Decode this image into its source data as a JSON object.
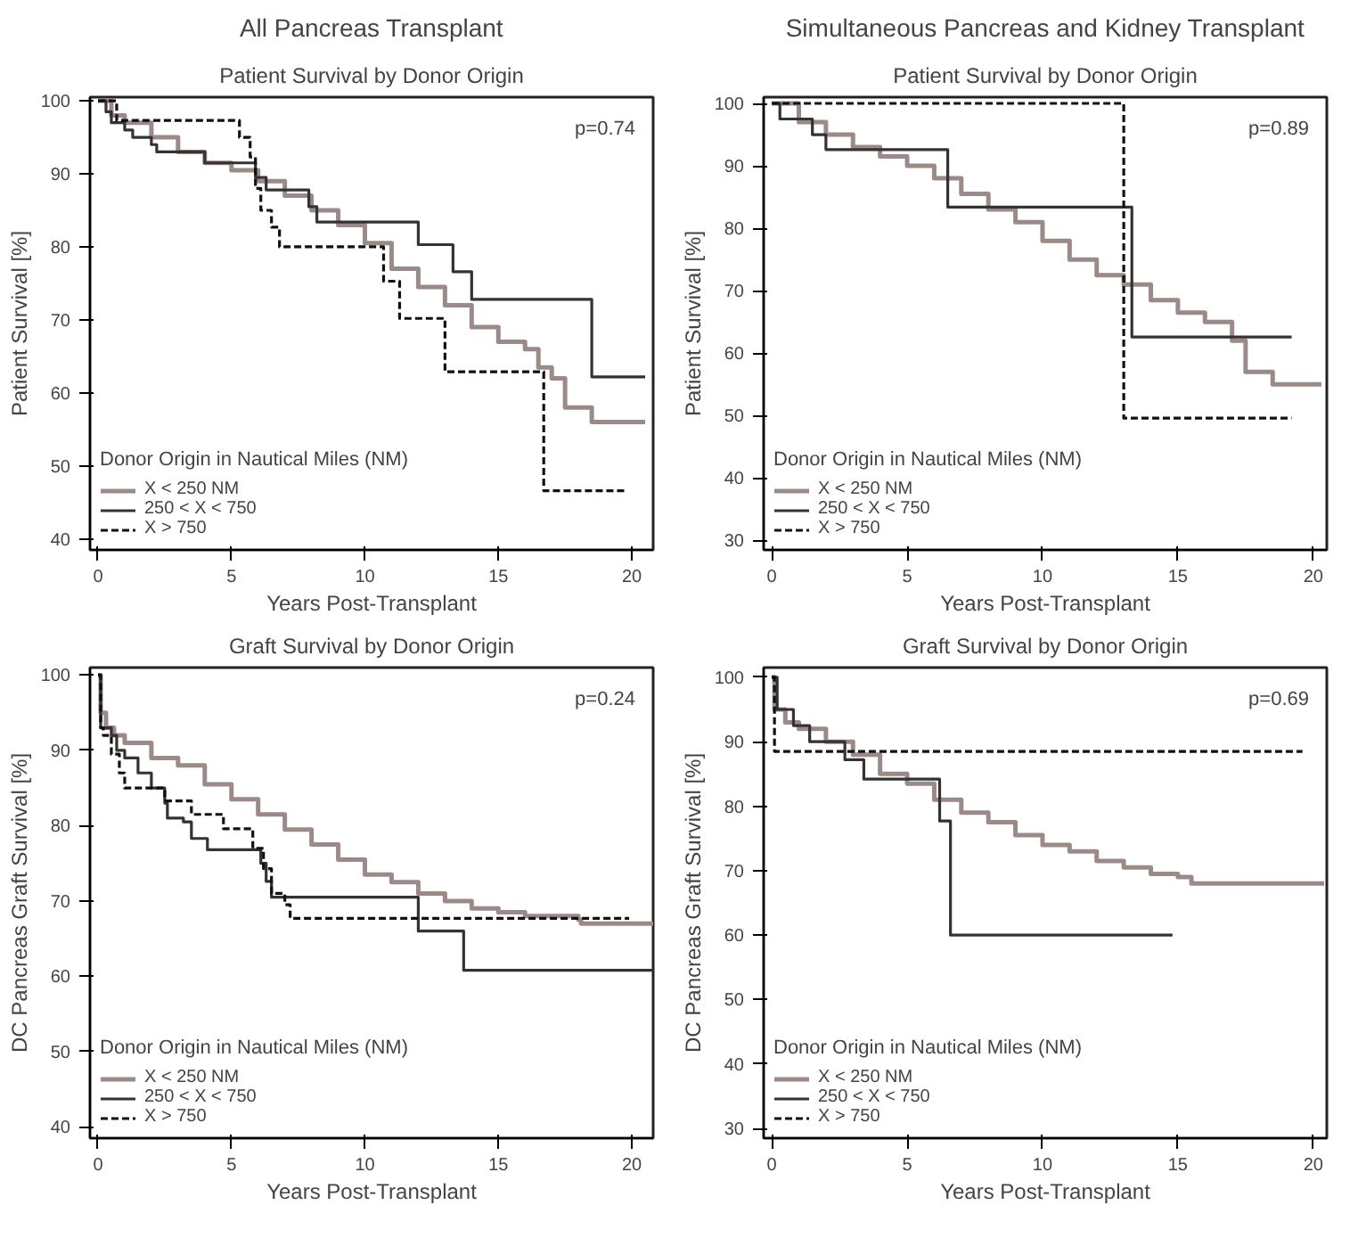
{
  "chart_data": [
    {
      "type": "step",
      "subtitle": "All Pancreas Transplant",
      "title": "Patient Survival by Donor Origin",
      "xlabel": "Years Post-Transplant",
      "ylabel": "Patient Survival [%]",
      "legend_title": "Donor Origin in Nautical Miles (NM)",
      "legend": "bottom left",
      "grid": false,
      "marker": "none",
      "annotations": [
        "p=0.74"
      ],
      "xlim": [
        -0.3,
        20.8
      ],
      "ylim": [
        38.5,
        100.5
      ],
      "xticks": [
        0,
        5,
        10,
        15,
        20
      ],
      "yticks": [
        40,
        50,
        60,
        70,
        80,
        90,
        100
      ],
      "series": [
        {
          "name": "X < 250 NM",
          "color": "#9b8a87",
          "line_style": "solid",
          "x": [
            0,
            0.5,
            1,
            2,
            3,
            4,
            5,
            6,
            7,
            8,
            9,
            10,
            11,
            12,
            13,
            14,
            15,
            16,
            16.5,
            17,
            17.5,
            18.5,
            20.5
          ],
          "values": [
            100,
            98,
            97,
            95,
            93,
            91.5,
            90.5,
            89,
            87,
            85,
            83,
            80.5,
            77,
            74.5,
            72,
            69,
            67,
            66,
            63.5,
            62,
            58,
            56,
            56
          ]
        },
        {
          "name": "250 < X < 750",
          "color": "#333333",
          "line_style": "solid",
          "x": [
            0,
            0.3,
            0.5,
            1,
            1.3,
            2,
            2.2,
            4,
            5.9,
            6.3,
            7.9,
            8.2,
            12,
            13.3,
            14,
            18.5,
            20.5
          ],
          "values": [
            100,
            98.5,
            97,
            96,
            95,
            94,
            93,
            91.5,
            89.5,
            87.8,
            85.5,
            83.4,
            80.3,
            76.6,
            72.8,
            62.2,
            62.2
          ]
        },
        {
          "name": "X > 750",
          "color": "#111111",
          "line_style": "dashed",
          "x": [
            0,
            0.7,
            5.3,
            5.7,
            5.9,
            6.1,
            6.5,
            6.8,
            10.7,
            11.3,
            13,
            16.7,
            19.8
          ],
          "values": [
            100,
            97.3,
            95,
            92.3,
            88,
            85,
            82.7,
            80,
            75.3,
            70.2,
            62.9,
            46.6,
            46.6
          ]
        }
      ]
    },
    {
      "type": "step",
      "subtitle": "Simultaneous Pancreas and Kidney Transplant",
      "title": "Patient Survival by Donor Origin",
      "xlabel": "Years Post-Transplant",
      "ylabel": "Patient Survival [%]",
      "legend_title": "Donor Origin in Nautical Miles (NM)",
      "legend": "bottom left",
      "grid": false,
      "marker": "none",
      "annotations": [
        "p=0.89"
      ],
      "xlim": [
        -0.3,
        20.5
      ],
      "ylim": [
        28.5,
        101
      ],
      "xticks": [
        0,
        5,
        10,
        15,
        20
      ],
      "yticks": [
        30,
        40,
        50,
        60,
        70,
        80,
        90,
        100
      ],
      "series": [
        {
          "name": "X < 250 NM",
          "color": "#9b8a87",
          "line_style": "solid",
          "x": [
            0,
            1,
            2,
            3,
            4,
            5,
            6,
            7,
            8,
            9,
            10,
            11,
            12,
            13,
            14,
            15,
            16,
            17,
            17.5,
            18.5,
            20.3
          ],
          "values": [
            100,
            97,
            95,
            93,
            91.5,
            90,
            88,
            85.5,
            83,
            81,
            78,
            75,
            72.5,
            71,
            68.5,
            66.5,
            65,
            62,
            57,
            55,
            55
          ]
        },
        {
          "name": "250 < X < 750",
          "color": "#333333",
          "line_style": "solid",
          "x": [
            0,
            0.3,
            1.5,
            2,
            6.5,
            13.3,
            19.2
          ],
          "values": [
            100,
            97.5,
            95,
            92.6,
            83.4,
            62.6,
            62.6
          ]
        },
        {
          "name": "X > 750",
          "color": "#111111",
          "line_style": "dashed",
          "x": [
            0,
            13,
            19.2
          ],
          "values": [
            100,
            49.6,
            49.6
          ]
        }
      ]
    },
    {
      "type": "step",
      "title": "Graft Survival by Donor Origin",
      "xlabel": "Years Post-Transplant",
      "ylabel": "DC Pancreas Graft Survival [%]",
      "legend_title": "Donor Origin in Nautical Miles (NM)",
      "legend": "bottom left",
      "grid": false,
      "marker": "none",
      "annotations": [
        "p=0.24"
      ],
      "xlim": [
        -0.3,
        20.8
      ],
      "ylim": [
        38.5,
        101
      ],
      "xticks": [
        0,
        5,
        10,
        15,
        20
      ],
      "yticks": [
        40,
        50,
        60,
        70,
        80,
        90,
        100
      ],
      "series": [
        {
          "name": "X < 250 NM",
          "color": "#9b8a87",
          "line_style": "solid",
          "x": [
            0,
            0.1,
            0.3,
            0.6,
            1,
            2,
            3,
            4,
            5,
            6,
            7,
            8,
            9,
            10,
            11,
            12,
            13,
            14,
            15,
            16,
            18,
            18.1,
            20.8
          ],
          "values": [
            100,
            95,
            93,
            92,
            91,
            89,
            88,
            85.5,
            83.5,
            81.5,
            79.5,
            77.5,
            75.5,
            73.5,
            72.5,
            71,
            70,
            69,
            68.5,
            68,
            67.5,
            67,
            67
          ]
        },
        {
          "name": "250 < X < 750",
          "color": "#333333",
          "line_style": "solid",
          "x": [
            0,
            0.1,
            0.5,
            0.7,
            1,
            1.5,
            2,
            2.5,
            2.6,
            3.2,
            3.5,
            4.1,
            6.1,
            6.3,
            6.5,
            12,
            13.7,
            20.8
          ],
          "values": [
            100,
            93,
            92,
            90,
            89,
            87,
            85,
            83,
            81,
            80.5,
            78.3,
            76.8,
            75,
            72.6,
            70.5,
            66,
            60.8,
            60.8
          ]
        },
        {
          "name": "X > 750",
          "color": "#111111",
          "line_style": "dashed",
          "x": [
            0,
            0.1,
            0.2,
            0.5,
            0.8,
            1,
            2.5,
            3.5,
            4.7,
            5.8,
            6.2,
            6.5,
            7,
            7.2,
            19.9
          ],
          "values": [
            100,
            93,
            92,
            89.5,
            87,
            85,
            83.3,
            81.5,
            79.6,
            77,
            74.3,
            71,
            69.5,
            67.7,
            67.7
          ]
        }
      ]
    },
    {
      "type": "step",
      "title": "Graft Survival by Donor Origin",
      "xlabel": "Years Post-Transplant",
      "ylabel": "DC Pancreas Graft Survival [%]",
      "legend_title": "Donor Origin in Nautical Miles (NM)",
      "legend": "bottom left",
      "grid": false,
      "marker": "none",
      "annotations": [
        "p=0.69"
      ],
      "xlim": [
        -0.3,
        20.5
      ],
      "ylim": [
        28.5,
        101.5
      ],
      "xticks": [
        0,
        5,
        10,
        15,
        20
      ],
      "yticks": [
        30,
        40,
        50,
        60,
        70,
        80,
        90,
        100
      ],
      "series": [
        {
          "name": "X < 250 NM",
          "color": "#9b8a87",
          "line_style": "solid",
          "x": [
            0,
            0.1,
            0.5,
            1,
            2,
            3,
            4,
            5,
            6,
            7,
            8,
            9,
            10,
            11,
            12,
            13,
            14,
            15,
            15.5,
            20.4
          ],
          "values": [
            100,
            95,
            93,
            92,
            90,
            88,
            85,
            83.5,
            81,
            79,
            77.5,
            75.5,
            74,
            73,
            71.5,
            70.5,
            69.5,
            69,
            68,
            68
          ]
        },
        {
          "name": "250 < X < 750",
          "color": "#333333",
          "line_style": "solid",
          "x": [
            0,
            0.2,
            0.8,
            1.4,
            2.7,
            3.4,
            6.2,
            6.6,
            14.8
          ],
          "values": [
            100,
            95,
            92.5,
            90,
            87.2,
            84.2,
            77.7,
            60,
            60
          ]
        },
        {
          "name": "X > 750",
          "color": "#111111",
          "line_style": "dashed",
          "x": [
            0,
            0.1,
            19.6
          ],
          "values": [
            100,
            88.5,
            88.5
          ]
        }
      ]
    }
  ]
}
